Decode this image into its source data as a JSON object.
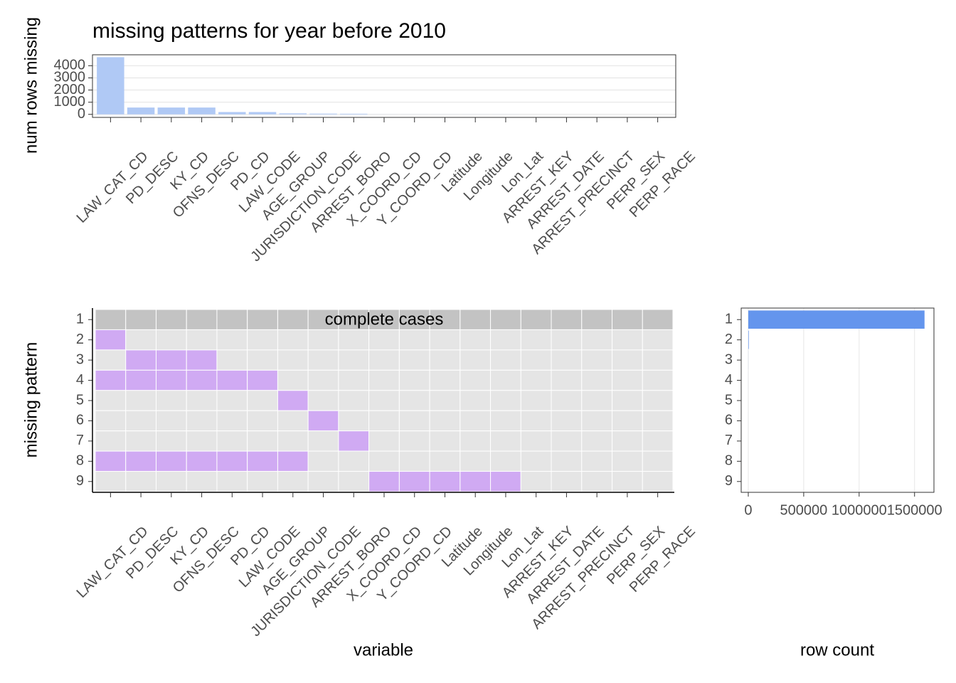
{
  "chart_data": [
    {
      "type": "bar",
      "title": "missing patterns for year before 2010",
      "y_label": "num rows missing",
      "categories": [
        "LAW_CAT_CD",
        "PD_DESC",
        "KY_CD",
        "OFNS_DESC",
        "PD_CD",
        "LAW_CODE",
        "AGE_GROUP",
        "JURISDICTION_CODE",
        "ARREST_BORO",
        "X_COORD_CD",
        "Y_COORD_CD",
        "Latitude",
        "Longitude",
        "Lon_Lat",
        "ARREST_KEY",
        "ARREST_DATE",
        "ARREST_PRECINCT",
        "PERP_SEX",
        "PERP_RACE"
      ],
      "values": [
        4700,
        560,
        560,
        560,
        190,
        190,
        80,
        60,
        50,
        5,
        5,
        5,
        5,
        5,
        0,
        0,
        0,
        0,
        0
      ],
      "color": "#b0c9f5",
      "ylim": [
        -250,
        4900
      ],
      "yticks": [
        0,
        1000,
        2000,
        3000,
        4000
      ],
      "grid": true
    },
    {
      "type": "heatmap",
      "x_label": "variable",
      "y_label": "missing pattern",
      "annotation": "complete cases",
      "categories": [
        "LAW_CAT_CD",
        "PD_DESC",
        "KY_CD",
        "OFNS_DESC",
        "PD_CD",
        "LAW_CODE",
        "AGE_GROUP",
        "JURISDICTION_CODE",
        "ARREST_BORO",
        "X_COORD_CD",
        "Y_COORD_CD",
        "Latitude",
        "Longitude",
        "Lon_Lat",
        "ARREST_KEY",
        "ARREST_DATE",
        "ARREST_PRECINCT",
        "PERP_SEX",
        "PERP_RACE"
      ],
      "rows": [
        "1",
        "2",
        "3",
        "4",
        "5",
        "6",
        "7",
        "8",
        "9"
      ],
      "values": [
        [
          0,
          0,
          0,
          0,
          0,
          0,
          0,
          0,
          0,
          0,
          0,
          0,
          0,
          0,
          0,
          0,
          0,
          0,
          0
        ],
        [
          1,
          0,
          0,
          0,
          0,
          0,
          0,
          0,
          0,
          0,
          0,
          0,
          0,
          0,
          0,
          0,
          0,
          0,
          0
        ],
        [
          0,
          1,
          1,
          1,
          0,
          0,
          0,
          0,
          0,
          0,
          0,
          0,
          0,
          0,
          0,
          0,
          0,
          0,
          0
        ],
        [
          1,
          1,
          1,
          1,
          1,
          1,
          0,
          0,
          0,
          0,
          0,
          0,
          0,
          0,
          0,
          0,
          0,
          0,
          0
        ],
        [
          0,
          0,
          0,
          0,
          0,
          0,
          1,
          0,
          0,
          0,
          0,
          0,
          0,
          0,
          0,
          0,
          0,
          0,
          0
        ],
        [
          0,
          0,
          0,
          0,
          0,
          0,
          0,
          1,
          0,
          0,
          0,
          0,
          0,
          0,
          0,
          0,
          0,
          0,
          0
        ],
        [
          0,
          0,
          0,
          0,
          0,
          0,
          0,
          0,
          1,
          0,
          0,
          0,
          0,
          0,
          0,
          0,
          0,
          0,
          0
        ],
        [
          1,
          1,
          1,
          1,
          1,
          1,
          1,
          0,
          0,
          0,
          0,
          0,
          0,
          0,
          0,
          0,
          0,
          0,
          0
        ],
        [
          0,
          0,
          0,
          0,
          0,
          0,
          0,
          0,
          0,
          1,
          1,
          1,
          1,
          1,
          0,
          0,
          0,
          0,
          0
        ]
      ],
      "colors": {
        "missing": "#d0aaf3",
        "present": "#e5e5e5",
        "complete": "#c3c3c3"
      }
    },
    {
      "type": "hbar",
      "x_label": "row count",
      "categories": [
        "1",
        "2",
        "3",
        "4",
        "5",
        "6",
        "7",
        "8",
        "9"
      ],
      "values": [
        1590000,
        4510,
        370,
        150,
        40,
        60,
        50,
        40,
        5
      ],
      "color": "#6495ed",
      "xlim": [
        -64000,
        1675000
      ],
      "xticks": [
        0,
        500000,
        1000000,
        1500000
      ],
      "grid": true
    }
  ]
}
